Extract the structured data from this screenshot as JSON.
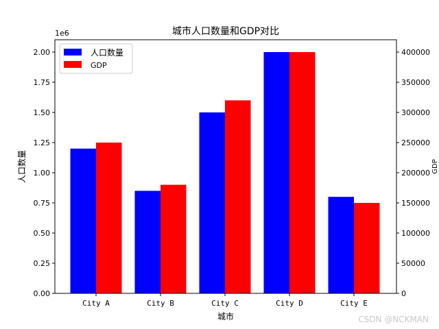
{
  "chart_data": {
    "type": "bar",
    "title": "城市人口数量和GDP对比",
    "xlabel": "城市",
    "ylabel": "人口数量",
    "ylabel_right": "GDP",
    "categories": [
      "City A",
      "City B",
      "City C",
      "City D",
      "City E"
    ],
    "series": [
      {
        "name": "人口数量",
        "axis": "left",
        "color": "#0000ff",
        "values": [
          1200000,
          850000,
          1500000,
          2000000,
          800000
        ]
      },
      {
        "name": "GDP",
        "axis": "right",
        "color": "#ff0000",
        "values": [
          250000,
          180000,
          320000,
          400000,
          150000
        ]
      }
    ],
    "ylim": [
      0,
      2100000
    ],
    "ylim_right": [
      0,
      420000
    ],
    "y_offset_label": "1e6",
    "yticks": [
      "0.00",
      "0.25",
      "0.50",
      "0.75",
      "1.00",
      "1.25",
      "1.50",
      "1.75",
      "2.00"
    ],
    "yticks_right": [
      "0",
      "50000",
      "100000",
      "150000",
      "200000",
      "250000",
      "300000",
      "350000",
      "400000"
    ],
    "legend_position": "upper left",
    "grid": false
  },
  "watermark": "CSDN @NCKMAN"
}
